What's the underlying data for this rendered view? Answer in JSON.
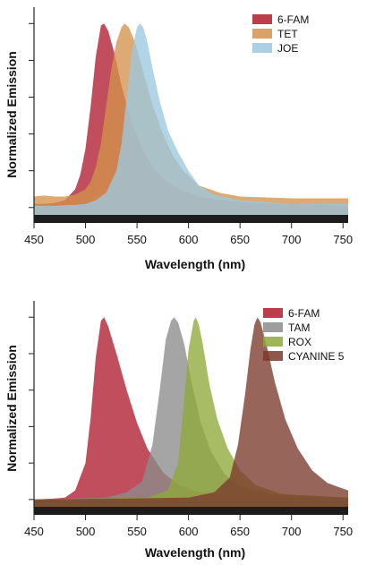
{
  "chart_data": [
    {
      "type": "area",
      "title": "",
      "xlabel": "Wavelength (nm)",
      "ylabel": "Normalized Emission",
      "xlim": [
        450,
        755
      ],
      "ylim": [
        -0.04,
        1.06
      ],
      "xticks": [
        450,
        500,
        550,
        600,
        650,
        700,
        750
      ],
      "grid": false,
      "legend_position": "top-right",
      "series": [
        {
          "name": "6-FAM",
          "color": "#b01c2e",
          "points": [
            [
              450,
              0.02
            ],
            [
              460,
              0.02
            ],
            [
              470,
              0.025
            ],
            [
              480,
              0.04
            ],
            [
              490,
              0.1
            ],
            [
              495,
              0.18
            ],
            [
              500,
              0.32
            ],
            [
              505,
              0.55
            ],
            [
              510,
              0.82
            ],
            [
              515,
              0.99
            ],
            [
              518,
              1.0
            ],
            [
              522,
              0.96
            ],
            [
              528,
              0.84
            ],
            [
              535,
              0.66
            ],
            [
              545,
              0.46
            ],
            [
              555,
              0.32
            ],
            [
              565,
              0.22
            ],
            [
              575,
              0.16
            ],
            [
              590,
              0.1
            ],
            [
              610,
              0.06
            ],
            [
              630,
              0.04
            ],
            [
              660,
              0.025
            ],
            [
              700,
              0.02
            ],
            [
              755,
              0.01
            ]
          ]
        },
        {
          "name": "TET",
          "color": "#d4924c",
          "points": [
            [
              450,
              0.06
            ],
            [
              460,
              0.065
            ],
            [
              470,
              0.06
            ],
            [
              480,
              0.06
            ],
            [
              490,
              0.07
            ],
            [
              500,
              0.1
            ],
            [
              505,
              0.14
            ],
            [
              510,
              0.22
            ],
            [
              515,
              0.35
            ],
            [
              520,
              0.55
            ],
            [
              525,
              0.75
            ],
            [
              530,
              0.9
            ],
            [
              535,
              0.98
            ],
            [
              538,
              1.0
            ],
            [
              542,
              0.98
            ],
            [
              548,
              0.9
            ],
            [
              555,
              0.76
            ],
            [
              565,
              0.56
            ],
            [
              575,
              0.4
            ],
            [
              585,
              0.28
            ],
            [
              595,
              0.2
            ],
            [
              610,
              0.12
            ],
            [
              630,
              0.08
            ],
            [
              650,
              0.06
            ],
            [
              700,
              0.05
            ],
            [
              755,
              0.05
            ]
          ]
        },
        {
          "name": "JOE",
          "color": "#9cc8e0",
          "points": [
            [
              450,
              0.01
            ],
            [
              470,
              0.01
            ],
            [
              490,
              0.015
            ],
            [
              500,
              0.02
            ],
            [
              510,
              0.04
            ],
            [
              520,
              0.08
            ],
            [
              530,
              0.2
            ],
            [
              535,
              0.35
            ],
            [
              540,
              0.6
            ],
            [
              545,
              0.85
            ],
            [
              550,
              0.98
            ],
            [
              553,
              1.0
            ],
            [
              556,
              0.98
            ],
            [
              560,
              0.9
            ],
            [
              565,
              0.76
            ],
            [
              572,
              0.58
            ],
            [
              580,
              0.42
            ],
            [
              590,
              0.3
            ],
            [
              600,
              0.2
            ],
            [
              610,
              0.12
            ],
            [
              625,
              0.07
            ],
            [
              650,
              0.04
            ],
            [
              700,
              0.02
            ],
            [
              755,
              0.02
            ]
          ]
        }
      ]
    },
    {
      "type": "area",
      "title": "",
      "xlabel": "Wavelength (nm)",
      "ylabel": "Normalized Emission",
      "xlim": [
        450,
        755
      ],
      "ylim": [
        -0.04,
        1.06
      ],
      "xticks": [
        450,
        500,
        550,
        600,
        650,
        700,
        750
      ],
      "grid": false,
      "legend_position": "top-right",
      "series": [
        {
          "name": "6-FAM",
          "color": "#b01c2e",
          "points": [
            [
              450,
              0.0
            ],
            [
              470,
              0.005
            ],
            [
              480,
              0.01
            ],
            [
              490,
              0.05
            ],
            [
              500,
              0.2
            ],
            [
              505,
              0.45
            ],
            [
              510,
              0.78
            ],
            [
              515,
              0.98
            ],
            [
              518,
              1.0
            ],
            [
              522,
              0.95
            ],
            [
              530,
              0.8
            ],
            [
              540,
              0.6
            ],
            [
              550,
              0.42
            ],
            [
              560,
              0.28
            ],
            [
              575,
              0.15
            ],
            [
              590,
              0.08
            ],
            [
              610,
              0.04
            ],
            [
              640,
              0.02
            ],
            [
              700,
              0.01
            ],
            [
              755,
              0.0
            ]
          ]
        },
        {
          "name": "TAM",
          "color": "#8c8c8c",
          "points": [
            [
              450,
              0.0
            ],
            [
              520,
              0.01
            ],
            [
              540,
              0.04
            ],
            [
              555,
              0.1
            ],
            [
              565,
              0.3
            ],
            [
              572,
              0.6
            ],
            [
              578,
              0.88
            ],
            [
              583,
              0.98
            ],
            [
              586,
              1.0
            ],
            [
              590,
              0.97
            ],
            [
              596,
              0.85
            ],
            [
              603,
              0.64
            ],
            [
              612,
              0.42
            ],
            [
              622,
              0.26
            ],
            [
              635,
              0.14
            ],
            [
              650,
              0.07
            ],
            [
              680,
              0.03
            ],
            [
              755,
              0.01
            ]
          ]
        },
        {
          "name": "ROX",
          "color": "#8fa83a",
          "points": [
            [
              450,
              0.0
            ],
            [
              560,
              0.01
            ],
            [
              580,
              0.05
            ],
            [
              590,
              0.2
            ],
            [
              595,
              0.5
            ],
            [
              600,
              0.82
            ],
            [
              605,
              0.98
            ],
            [
              607,
              1.0
            ],
            [
              610,
              0.96
            ],
            [
              614,
              0.85
            ],
            [
              620,
              0.64
            ],
            [
              628,
              0.44
            ],
            [
              638,
              0.28
            ],
            [
              650,
              0.16
            ],
            [
              665,
              0.08
            ],
            [
              690,
              0.03
            ],
            [
              755,
              0.01
            ]
          ]
        },
        {
          "name": "CYANINE 5",
          "color": "#7a3a2a",
          "points": [
            [
              450,
              0.0
            ],
            [
              600,
              0.01
            ],
            [
              625,
              0.04
            ],
            [
              640,
              0.12
            ],
            [
              648,
              0.3
            ],
            [
              655,
              0.58
            ],
            [
              660,
              0.82
            ],
            [
              664,
              0.96
            ],
            [
              667,
              1.0
            ],
            [
              670,
              0.97
            ],
            [
              676,
              0.84
            ],
            [
              684,
              0.64
            ],
            [
              694,
              0.44
            ],
            [
              706,
              0.28
            ],
            [
              720,
              0.16
            ],
            [
              735,
              0.09
            ],
            [
              755,
              0.05
            ]
          ]
        }
      ]
    }
  ]
}
